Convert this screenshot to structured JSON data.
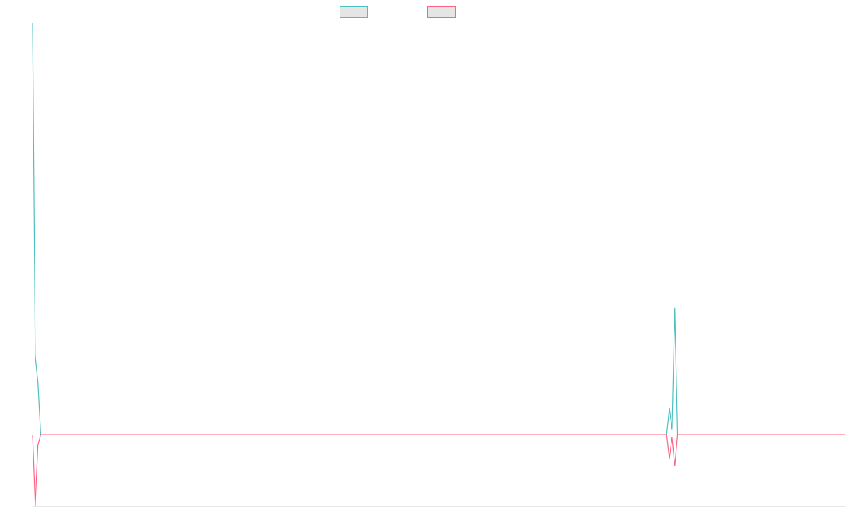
{
  "chart_data": {
    "type": "line",
    "title": "",
    "xlabel": "",
    "ylabel": "",
    "legend_position": "top-center",
    "grid": false,
    "ylim": [
      -0.135,
      0.775
    ],
    "x": [
      0,
      1,
      2,
      3,
      234,
      235,
      236,
      237,
      238,
      300
    ],
    "series": [
      {
        "name": "",
        "color": "#4bc0c0",
        "fill": "#e5e5e5",
        "values": [
          0.78,
          0.15,
          0.1,
          0.0,
          0.0,
          0.05,
          0.01,
          0.24,
          0.0,
          0.0
        ]
      },
      {
        "name": "",
        "color": "#ff6384",
        "fill": "#e5e5e5",
        "values": [
          0.0,
          -0.135,
          -0.02,
          0.0,
          0.0,
          -0.045,
          -0.005,
          -0.06,
          0.0,
          0.0
        ]
      }
    ]
  }
}
